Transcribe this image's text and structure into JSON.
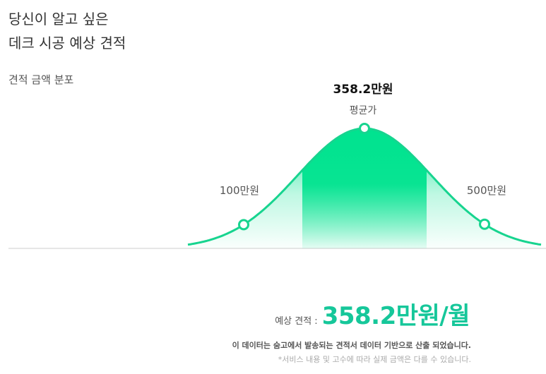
{
  "headline": {
    "line1": "당신이 알고 싶은",
    "line2": "데크 시공 예상 견적"
  },
  "section_label": "견적 금액 분포",
  "estimate": {
    "label": "예상 견적 :",
    "value": "358.2만원/월"
  },
  "notes": {
    "source": "이 데이터는 숨고에서 발송되는 견적서 데이터 기반으로 산출 되었습니다.",
    "disclaimer": "*서비스 내용 및 고수에 따라 실제 금액은 다를 수 있습니다."
  },
  "colors": {
    "accent": "#16c79a",
    "curve": "#17d48f",
    "band": "#00e38f",
    "baseline": "#cccccc"
  },
  "chart_data": {
    "type": "area",
    "title": "견적 금액 분포",
    "points": [
      {
        "label": "100만원",
        "value": 100,
        "unit": "만원"
      },
      {
        "label": "358.2만원",
        "value": 358.2,
        "unit": "만원",
        "caption": "평균가"
      },
      {
        "label": "500만원",
        "value": 500,
        "unit": "만원"
      }
    ]
  }
}
